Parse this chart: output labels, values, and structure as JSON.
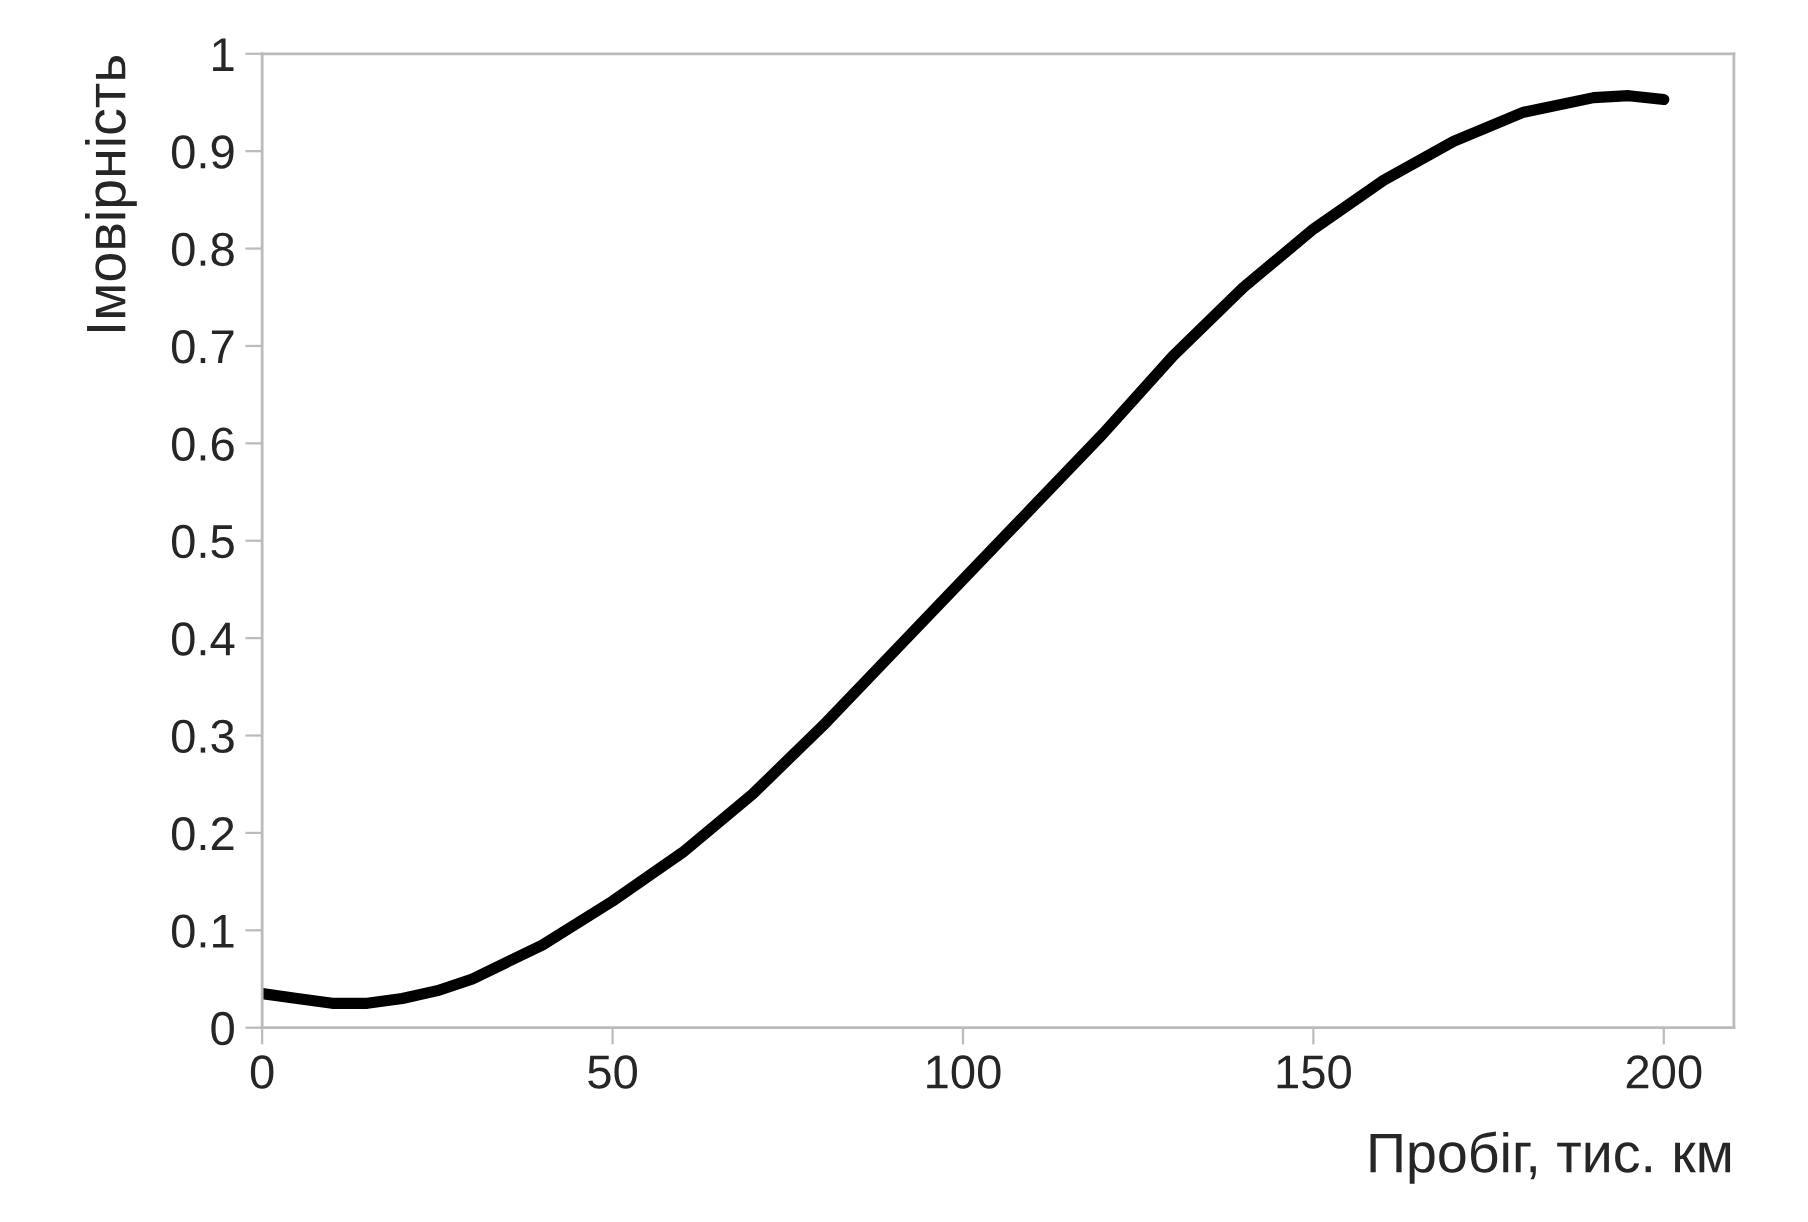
{
  "chart_data": {
    "type": "line",
    "xlabel": "Пробіг, тис. км",
    "ylabel": "Імовірність",
    "x": [
      0,
      5,
      10,
      15,
      20,
      25,
      30,
      40,
      50,
      60,
      70,
      80,
      90,
      100,
      110,
      120,
      130,
      140,
      150,
      160,
      170,
      180,
      190,
      195,
      200
    ],
    "series": [
      {
        "color": "#000000",
        "values": [
          0.035,
          0.03,
          0.025,
          0.025,
          0.03,
          0.038,
          0.05,
          0.085,
          0.13,
          0.18,
          0.24,
          0.31,
          0.385,
          0.46,
          0.535,
          0.61,
          0.69,
          0.76,
          0.82,
          0.87,
          0.91,
          0.94,
          0.955,
          0.957,
          0.953
        ]
      }
    ],
    "xlim": [
      0,
      210
    ],
    "ylim": [
      0,
      1
    ],
    "xticks": [
      0,
      50,
      100,
      150,
      200
    ],
    "yticks": [
      0,
      0.1,
      0.2,
      0.3,
      0.4,
      0.5,
      0.6,
      0.7,
      0.8,
      0.9,
      1
    ],
    "grid": false,
    "legend": false,
    "marker": "none",
    "line_style": "solid"
  }
}
